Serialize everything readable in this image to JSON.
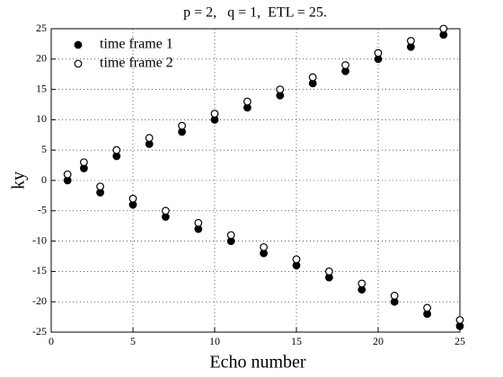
{
  "chart_data": {
    "type": "scatter",
    "title": "p = 2,   q = 1,  ETL = 25.",
    "xlabel": "Echo number",
    "ylabel": "ky",
    "x": [
      1,
      2,
      3,
      4,
      5,
      6,
      7,
      8,
      9,
      10,
      11,
      12,
      13,
      14,
      15,
      16,
      17,
      18,
      19,
      20,
      21,
      22,
      23,
      24,
      25
    ],
    "series": [
      {
        "name": "time frame 1",
        "color": "#000000",
        "marker": "filled",
        "values": [
          0,
          2,
          -2,
          4,
          -4,
          6,
          -6,
          8,
          -8,
          10,
          -10,
          12,
          -12,
          14,
          -14,
          16,
          -16,
          18,
          -18,
          20,
          -20,
          22,
          -22,
          24,
          -24
        ]
      },
      {
        "name": "time frame 2",
        "color": "#000000",
        "marker": "open",
        "values": [
          1,
          3,
          -1,
          5,
          -3,
          7,
          -5,
          9,
          -7,
          11,
          -9,
          13,
          -11,
          15,
          -13,
          17,
          -15,
          19,
          -17,
          21,
          -19,
          23,
          -21,
          25,
          -23
        ]
      }
    ],
    "xlim": [
      0,
      25
    ],
    "xticks": [
      0,
      5,
      10,
      15,
      20,
      25
    ],
    "ylim": [
      -25,
      25
    ],
    "yticks": [
      -25,
      -20,
      -15,
      -10,
      -5,
      0,
      5,
      10,
      15,
      20,
      25
    ],
    "grid": true,
    "legend": "upper left"
  }
}
